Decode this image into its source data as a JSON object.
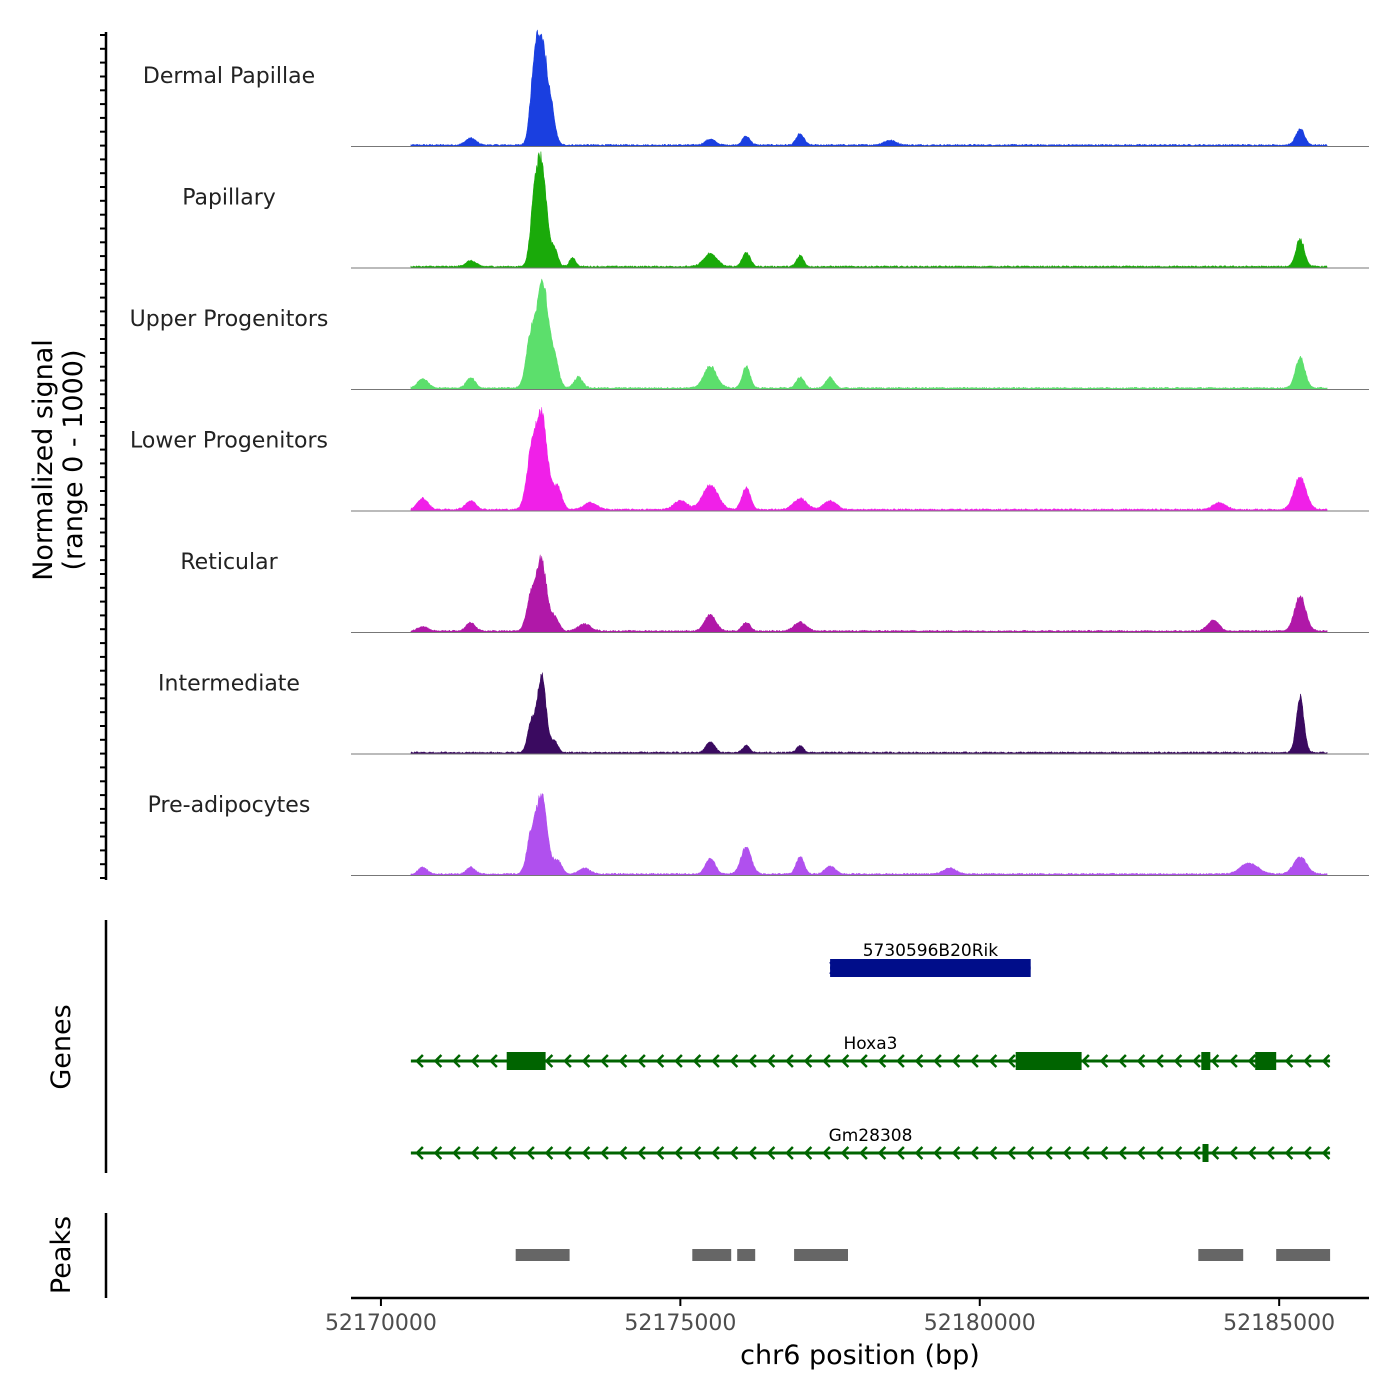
{
  "chart_data": {
    "type": "area",
    "ylabel_line1": "Normalized signal",
    "ylabel_line2": "(range 0 - 1000)",
    "xlabel": "chr6 position (bp)",
    "xlim": [
      52169500,
      52186500
    ],
    "x_ticks": [
      52170000,
      52175000,
      52180000,
      52185000
    ],
    "x_tick_labels": [
      "52170000",
      "52175000",
      "52180000",
      "52185000"
    ],
    "signal_range": [
      0,
      1000
    ],
    "track_x_range": [
      52170500,
      52185800
    ],
    "tracks": [
      {
        "name": "Dermal Papillae",
        "color": "#1a3fe0",
        "peaks": [
          {
            "x": 52172680,
            "width": 130,
            "height": 0.95
          },
          {
            "x": 52172550,
            "width": 90,
            "height": 0.45
          },
          {
            "x": 52172850,
            "width": 90,
            "height": 0.25
          },
          {
            "x": 52171500,
            "width": 120,
            "height": 0.06
          },
          {
            "x": 52176100,
            "width": 90,
            "height": 0.08
          },
          {
            "x": 52177000,
            "width": 90,
            "height": 0.1
          },
          {
            "x": 52175500,
            "width": 120,
            "height": 0.05
          },
          {
            "x": 52178500,
            "width": 150,
            "height": 0.04
          },
          {
            "x": 52185350,
            "width": 100,
            "height": 0.15
          }
        ]
      },
      {
        "name": "Papillary",
        "color": "#1aaa0a",
        "peaks": [
          {
            "x": 52172680,
            "width": 120,
            "height": 0.95
          },
          {
            "x": 52172550,
            "width": 90,
            "height": 0.4
          },
          {
            "x": 52172900,
            "width": 80,
            "height": 0.15
          },
          {
            "x": 52173200,
            "width": 70,
            "height": 0.08
          },
          {
            "x": 52175500,
            "width": 150,
            "height": 0.12
          },
          {
            "x": 52176100,
            "width": 90,
            "height": 0.13
          },
          {
            "x": 52177000,
            "width": 80,
            "height": 0.1
          },
          {
            "x": 52171500,
            "width": 120,
            "height": 0.05
          },
          {
            "x": 52185350,
            "width": 100,
            "height": 0.25
          }
        ]
      },
      {
        "name": "Upper Progenitors",
        "color": "#5cdf6c",
        "peaks": [
          {
            "x": 52172700,
            "width": 130,
            "height": 0.98
          },
          {
            "x": 52172500,
            "width": 110,
            "height": 0.45
          },
          {
            "x": 52172900,
            "width": 100,
            "height": 0.25
          },
          {
            "x": 52173300,
            "width": 100,
            "height": 0.1
          },
          {
            "x": 52170700,
            "width": 120,
            "height": 0.08
          },
          {
            "x": 52171500,
            "width": 100,
            "height": 0.1
          },
          {
            "x": 52175500,
            "width": 150,
            "height": 0.2
          },
          {
            "x": 52176100,
            "width": 90,
            "height": 0.2
          },
          {
            "x": 52177000,
            "width": 90,
            "height": 0.1
          },
          {
            "x": 52177500,
            "width": 90,
            "height": 0.1
          },
          {
            "x": 52185350,
            "width": 110,
            "height": 0.28
          }
        ]
      },
      {
        "name": "Lower Progenitors",
        "color": "#f020e8",
        "peaks": [
          {
            "x": 52172680,
            "width": 140,
            "height": 0.85
          },
          {
            "x": 52172500,
            "width": 110,
            "height": 0.4
          },
          {
            "x": 52172950,
            "width": 100,
            "height": 0.2
          },
          {
            "x": 52170700,
            "width": 120,
            "height": 0.1
          },
          {
            "x": 52171500,
            "width": 120,
            "height": 0.08
          },
          {
            "x": 52173500,
            "width": 150,
            "height": 0.06
          },
          {
            "x": 52175500,
            "width": 180,
            "height": 0.22
          },
          {
            "x": 52176100,
            "width": 100,
            "height": 0.2
          },
          {
            "x": 52175000,
            "width": 150,
            "height": 0.08
          },
          {
            "x": 52177000,
            "width": 150,
            "height": 0.1
          },
          {
            "x": 52177500,
            "width": 150,
            "height": 0.08
          },
          {
            "x": 52184000,
            "width": 150,
            "height": 0.06
          },
          {
            "x": 52185350,
            "width": 140,
            "height": 0.3
          }
        ]
      },
      {
        "name": "Reticular",
        "color": "#b018a8",
        "peaks": [
          {
            "x": 52172680,
            "width": 120,
            "height": 0.65
          },
          {
            "x": 52172500,
            "width": 100,
            "height": 0.3
          },
          {
            "x": 52172900,
            "width": 100,
            "height": 0.12
          },
          {
            "x": 52173400,
            "width": 150,
            "height": 0.06
          },
          {
            "x": 52170700,
            "width": 120,
            "height": 0.04
          },
          {
            "x": 52171500,
            "width": 100,
            "height": 0.08
          },
          {
            "x": 52175500,
            "width": 130,
            "height": 0.15
          },
          {
            "x": 52176100,
            "width": 90,
            "height": 0.08
          },
          {
            "x": 52177000,
            "width": 140,
            "height": 0.08
          },
          {
            "x": 52183900,
            "width": 130,
            "height": 0.1
          },
          {
            "x": 52185350,
            "width": 130,
            "height": 0.32
          }
        ]
      },
      {
        "name": "Intermediate",
        "color": "#3a0a60",
        "peaks": [
          {
            "x": 52172680,
            "width": 110,
            "height": 0.7
          },
          {
            "x": 52172500,
            "width": 80,
            "height": 0.25
          },
          {
            "x": 52172900,
            "width": 80,
            "height": 0.1
          },
          {
            "x": 52175500,
            "width": 100,
            "height": 0.1
          },
          {
            "x": 52176100,
            "width": 80,
            "height": 0.06
          },
          {
            "x": 52177000,
            "width": 80,
            "height": 0.06
          },
          {
            "x": 52185350,
            "width": 90,
            "height": 0.5
          }
        ]
      },
      {
        "name": "Pre-adipocytes",
        "color": "#b050ee",
        "peaks": [
          {
            "x": 52172680,
            "width": 130,
            "height": 0.72
          },
          {
            "x": 52172500,
            "width": 100,
            "height": 0.3
          },
          {
            "x": 52172950,
            "width": 100,
            "height": 0.12
          },
          {
            "x": 52173400,
            "width": 130,
            "height": 0.05
          },
          {
            "x": 52170700,
            "width": 100,
            "height": 0.06
          },
          {
            "x": 52171500,
            "width": 100,
            "height": 0.06
          },
          {
            "x": 52175500,
            "width": 110,
            "height": 0.15
          },
          {
            "x": 52176100,
            "width": 120,
            "height": 0.25
          },
          {
            "x": 52177000,
            "width": 90,
            "height": 0.16
          },
          {
            "x": 52177500,
            "width": 120,
            "height": 0.07
          },
          {
            "x": 52179500,
            "width": 150,
            "height": 0.05
          },
          {
            "x": 52184500,
            "width": 200,
            "height": 0.1
          },
          {
            "x": 52185350,
            "width": 150,
            "height": 0.16
          }
        ]
      }
    ],
    "genes_label": "Genes",
    "genes": [
      {
        "name": "5730596B20Rik",
        "color": "#000d8a",
        "strand": "+",
        "start": 52177500,
        "end": 52180850,
        "exons": [
          [
            52177500,
            52180850
          ]
        ]
      },
      {
        "name": "Hoxa3",
        "color": "#006400",
        "strand": "-",
        "start": 52170500,
        "end": 52185850,
        "exons": [
          [
            52172100,
            52172750
          ],
          [
            52180600,
            52181700
          ],
          [
            52183700,
            52183850
          ],
          [
            52184600,
            52184950
          ]
        ]
      },
      {
        "name": "Gm28308",
        "color": "#006400",
        "strand": "-",
        "start": 52170500,
        "end": 52185850,
        "exons": [
          [
            52183720,
            52183800
          ]
        ]
      }
    ],
    "peaks_label": "Peaks",
    "peaks_color": "#666666",
    "peak_regions": [
      [
        52172250,
        52173150
      ],
      [
        52175200,
        52175850
      ],
      [
        52175950,
        52176250
      ],
      [
        52176900,
        52177800
      ],
      [
        52183650,
        52184400
      ],
      [
        52184950,
        52185850
      ]
    ]
  }
}
